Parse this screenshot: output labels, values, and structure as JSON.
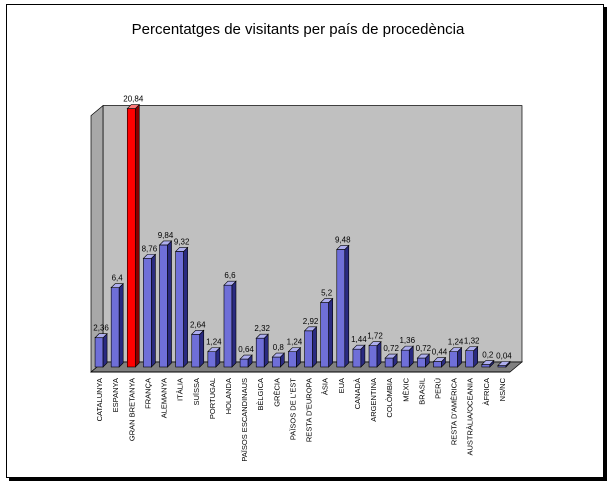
{
  "chart_data": {
    "type": "bar",
    "title": "Percentatges de visitants per país de procedència",
    "xlabel": "",
    "ylabel": "",
    "ylim": [
      0,
      21
    ],
    "grid": false,
    "legend": "none",
    "categories": [
      "CATALUNYA",
      "ESPANYA",
      "GRAN BRETANYA",
      "FRANÇA",
      "ALEMANYA",
      "ITÀLIA",
      "SUÏSSA",
      "PORTUGAL",
      "HOLANDA",
      "PAÏSOS ESCANDINAUS",
      "BÈLGICA",
      "GRÈCIA",
      "PAÏSOS DE L'EST",
      "RESTA D'EUROPA",
      "ÀSIA",
      "EUA",
      "CANADÀ",
      "ARGENTINA",
      "COLÒMBIA",
      "MÈXIC",
      "BRASIL",
      "PERÚ",
      "RESTA D'AMÈRICA",
      "AUSTRÀLIA/OCEANIA",
      "ÀFRICA",
      "NS/NC"
    ],
    "value_labels": [
      "2,36",
      "6,4",
      "20,84",
      "8,76",
      "9,84",
      "9,32",
      "2,64",
      "1,24",
      "6,6",
      "0,64",
      "2,32",
      "0,8",
      "1,24",
      "2,92",
      "5,2",
      "9,48",
      "1,44",
      "1,72",
      "0,72",
      "1,36",
      "0,72",
      "0,44",
      "1,24",
      "1,32",
      "0,2",
      "0,04"
    ],
    "values": [
      2.36,
      6.4,
      20.84,
      8.76,
      9.84,
      9.32,
      2.64,
      1.24,
      6.6,
      0.64,
      2.32,
      0.8,
      1.24,
      2.92,
      5.2,
      9.48,
      1.44,
      1.72,
      0.72,
      1.36,
      0.72,
      0.44,
      1.24,
      1.32,
      0.2,
      0.04
    ],
    "highlight_index": 2,
    "colors": {
      "bar_front": "#6f6fd8",
      "bar_side": "#2a2a80",
      "bar_top": "#aeaeee",
      "highlight_front": "#ff0000",
      "highlight_side": "#8a0000",
      "highlight_top": "#ff7a7a",
      "wall": "#c0c0c0",
      "floor": "#808080"
    }
  }
}
